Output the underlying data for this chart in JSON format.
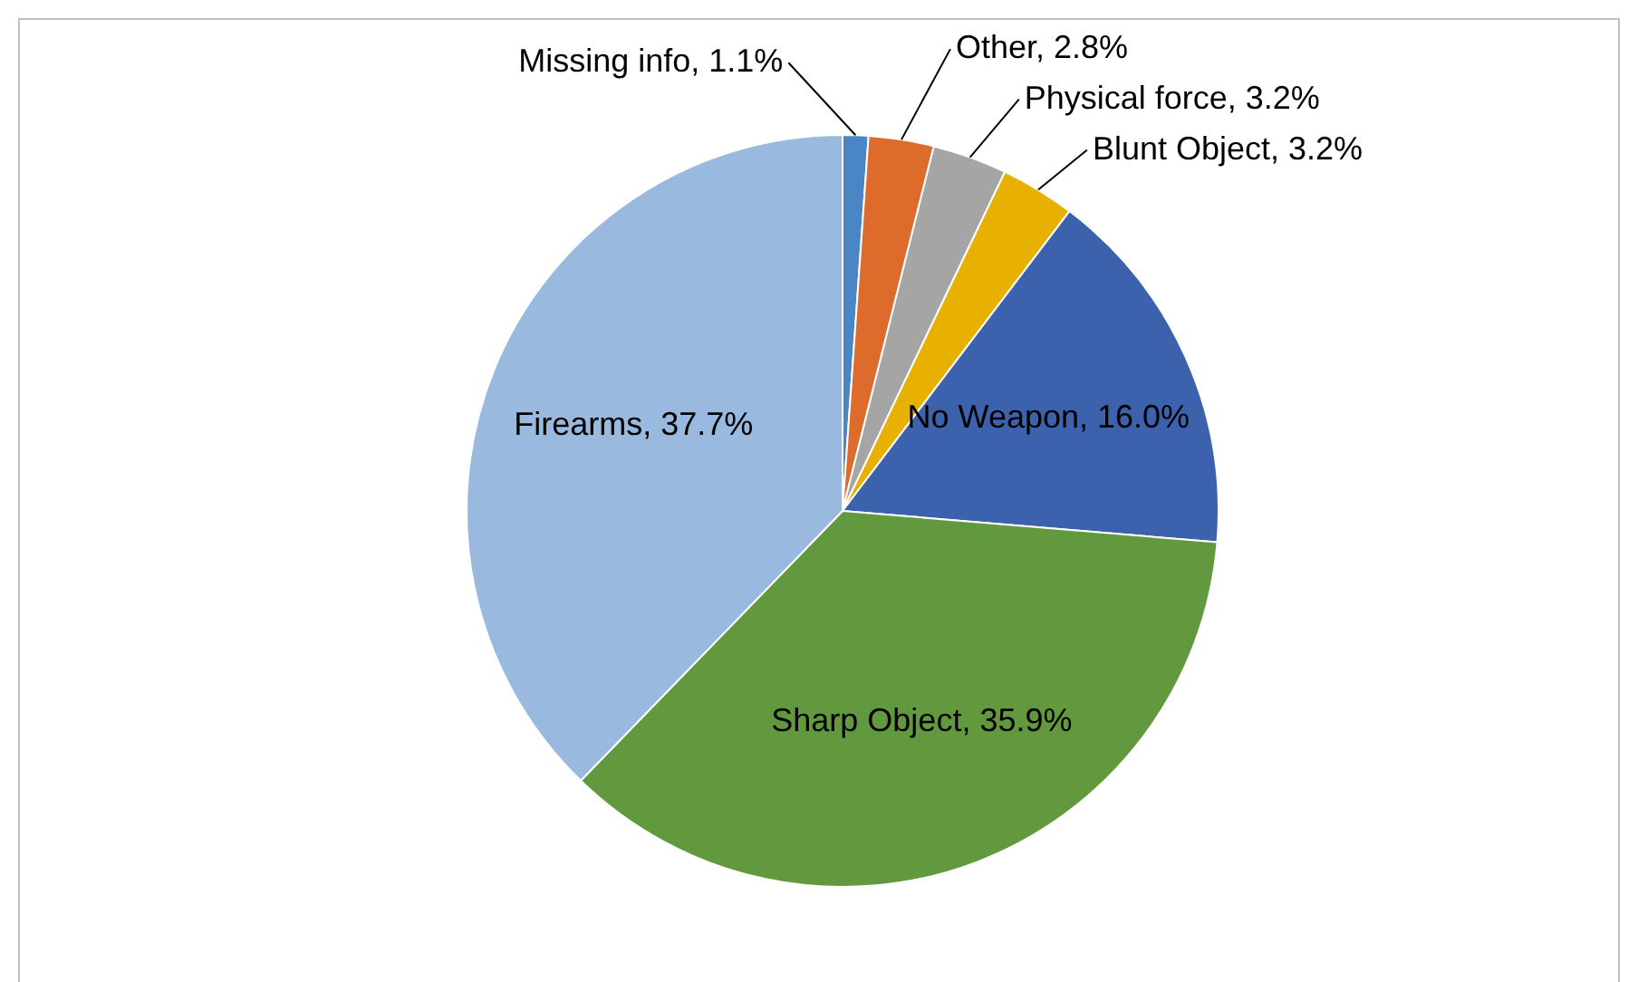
{
  "chart_data": {
    "type": "pie",
    "categories": [
      "Missing info",
      "Other",
      "Physical force",
      "Blunt Object",
      "No Weapon",
      "Sharp Object",
      "Firearms"
    ],
    "values": [
      1.1,
      2.8,
      3.2,
      3.2,
      16.0,
      35.9,
      37.7
    ],
    "colors": [
      "#4a86c5",
      "#dc6b2c",
      "#a5a5a5",
      "#e8b000",
      "#3d62ad",
      "#63993e",
      "#9ab9de"
    ],
    "value_labels": [
      "1.1%",
      "2.8%",
      "3.2%",
      "3.2%",
      "16.0%",
      "35.9%",
      "37.7%"
    ],
    "legend": false
  }
}
